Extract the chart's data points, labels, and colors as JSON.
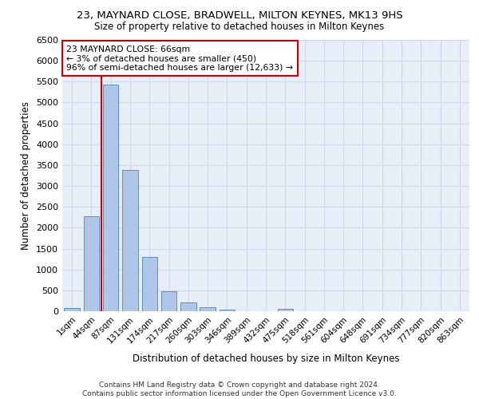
{
  "title": "23, MAYNARD CLOSE, BRADWELL, MILTON KEYNES, MK13 9HS",
  "subtitle": "Size of property relative to detached houses in Milton Keynes",
  "xlabel": "Distribution of detached houses by size in Milton Keynes",
  "ylabel": "Number of detached properties",
  "footer_line1": "Contains HM Land Registry data © Crown copyright and database right 2024.",
  "footer_line2": "Contains public sector information licensed under the Open Government Licence v3.0.",
  "categories": [
    "1sqm",
    "44sqm",
    "87sqm",
    "131sqm",
    "174sqm",
    "217sqm",
    "260sqm",
    "303sqm",
    "346sqm",
    "389sqm",
    "432sqm",
    "475sqm",
    "518sqm",
    "561sqm",
    "604sqm",
    "648sqm",
    "691sqm",
    "734sqm",
    "777sqm",
    "820sqm",
    "863sqm"
  ],
  "values": [
    70,
    2270,
    5420,
    3380,
    1300,
    470,
    210,
    95,
    40,
    0,
    0,
    50,
    0,
    0,
    0,
    0,
    0,
    0,
    0,
    0,
    0
  ],
  "bar_color": "#aec6e8",
  "bar_edge_color": "#5a8fc0",
  "grid_color": "#d0d8e8",
  "background_color": "#e8eef8",
  "marker_line_color": "#cc0000",
  "annotation_line1": "23 MAYNARD CLOSE: 66sqm",
  "annotation_line2": "← 3% of detached houses are smaller (450)",
  "annotation_line3": "96% of semi-detached houses are larger (12,633) →",
  "annotation_box_color": "#ffffff",
  "annotation_box_edge": "#cc0000",
  "ylim": [
    0,
    6500
  ],
  "yticks": [
    0,
    500,
    1000,
    1500,
    2000,
    2500,
    3000,
    3500,
    4000,
    4500,
    5000,
    5500,
    6000,
    6500
  ]
}
